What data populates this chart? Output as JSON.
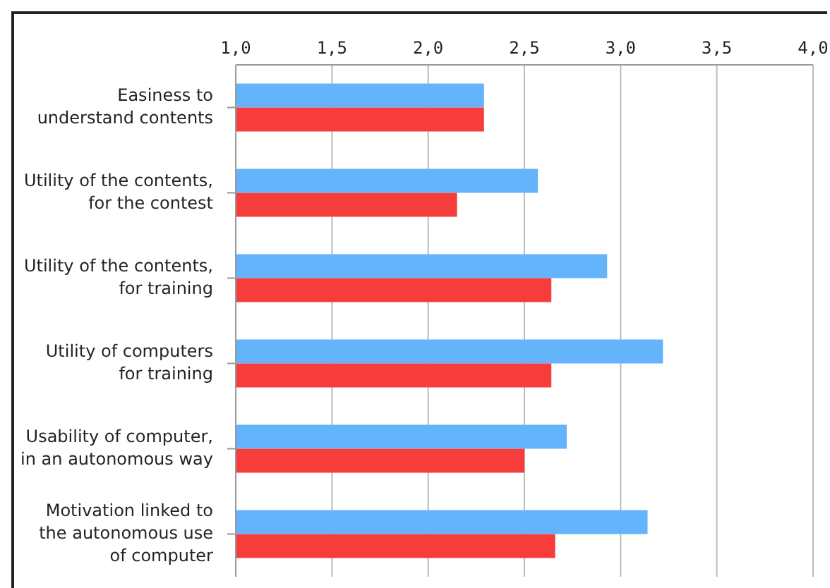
{
  "chart_data": {
    "type": "bar",
    "orientation": "horizontal",
    "categories": [
      "Easiness to\nunderstand contents",
      "Utility of the contents,\nfor the contest",
      "Utility of the contents,\nfor training",
      "Utility of computers\nfor training",
      "Usability of computer,\nin an autonomous way",
      "Motivation linked to\nthe autonomous use\nof computer"
    ],
    "series": [
      {
        "color": "#64b4fc",
        "values": [
          2.29,
          2.57,
          2.93,
          3.22,
          2.72,
          3.14
        ]
      },
      {
        "color": "#f73d3c",
        "values": [
          2.29,
          2.15,
          2.64,
          2.64,
          2.5,
          2.66
        ]
      }
    ],
    "xlim": [
      1,
      4
    ],
    "xticks": [
      {
        "value": 1,
        "label": "1,0"
      },
      {
        "value": 1.5,
        "label": "1,5"
      },
      {
        "value": 2,
        "label": "2,0"
      },
      {
        "value": 2.5,
        "label": "2,5"
      },
      {
        "value": 3,
        "label": "3,0"
      },
      {
        "value": 3.5,
        "label": "3,5"
      },
      {
        "value": 4,
        "label": "4,0"
      }
    ],
    "grid": "x",
    "legend": false
  }
}
